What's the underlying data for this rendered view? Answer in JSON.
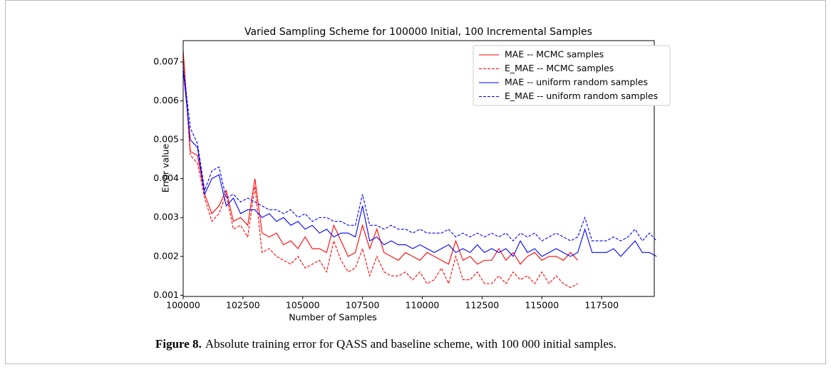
{
  "chart_data": {
    "type": "line",
    "title": "Varied Sampling Scheme for 100000 Initial, 100 Incremental Samples",
    "x_label": "Number of Samples",
    "y_label": "Error value",
    "x": [
      100000,
      100300,
      100600,
      100900,
      101200,
      101500,
      101800,
      102100,
      102400,
      102700,
      103000,
      103300,
      103600,
      103900,
      104200,
      104500,
      104800,
      105100,
      105400,
      105700,
      106000,
      106300,
      106600,
      106900,
      107200,
      107500,
      107800,
      108100,
      108400,
      108700,
      109000,
      109300,
      109600,
      109900,
      110200,
      110500,
      110800,
      111100,
      111400,
      111700,
      112000,
      112300,
      112600,
      112900,
      113200,
      113500,
      113800,
      114100,
      114400,
      114700,
      115000,
      115300,
      115600,
      115900,
      116200,
      116500,
      116800,
      117100,
      117400,
      117700,
      118000,
      118300,
      118600,
      118900,
      119200,
      119500,
      119800
    ],
    "xlim": [
      100000,
      119700
    ],
    "xticks": [
      100000,
      102500,
      105000,
      107500,
      110000,
      112500,
      115000,
      117500
    ],
    "ylim": [
      0.00097,
      0.00755
    ],
    "yticks": [
      0.001,
      0.002,
      0.003,
      0.004,
      0.005,
      0.006,
      0.007
    ],
    "legend": "upper right",
    "series": [
      {
        "name": "MAE -- MCMC samples",
        "color": "#ff0000",
        "dashed": false,
        "values": [
          0.0073,
          0.0047,
          0.0046,
          0.0036,
          0.0031,
          0.0033,
          0.0037,
          0.0029,
          0.003,
          0.0028,
          0.004,
          0.0026,
          0.0025,
          0.0026,
          0.0023,
          0.0024,
          0.0022,
          0.0025,
          0.0022,
          0.0022,
          0.0021,
          0.0028,
          0.0024,
          0.002,
          0.0021,
          0.0028,
          0.0022,
          0.0027,
          0.0021,
          0.002,
          0.0019,
          0.0021,
          0.002,
          0.0019,
          0.0021,
          0.002,
          0.0019,
          0.0018,
          0.0024,
          0.0019,
          0.002,
          0.0018,
          0.0019,
          0.0019,
          0.0022,
          0.0019,
          0.0021,
          0.0018,
          0.002,
          0.0021,
          0.0019,
          0.002,
          0.002,
          0.0019,
          0.0021,
          0.0019,
          null,
          null,
          null,
          null,
          null,
          null,
          null,
          null,
          null,
          null,
          null
        ]
      },
      {
        "name": "E_MAE -- MCMC samples",
        "color": "#ff0000",
        "dashed": true,
        "values": [
          0.0072,
          0.0046,
          0.0044,
          0.0035,
          0.0029,
          0.0031,
          0.0036,
          0.0027,
          0.0028,
          0.0025,
          0.0038,
          0.0021,
          0.0022,
          0.002,
          0.0019,
          0.0018,
          0.002,
          0.0017,
          0.0018,
          0.0019,
          0.0016,
          0.0024,
          0.0019,
          0.0016,
          0.0017,
          0.0022,
          0.0015,
          0.002,
          0.0016,
          0.0015,
          0.0015,
          0.0016,
          0.0014,
          0.0016,
          0.0013,
          0.0014,
          0.0017,
          0.0013,
          0.002,
          0.0014,
          0.0014,
          0.0016,
          0.0013,
          0.0013,
          0.0015,
          0.0013,
          0.0016,
          0.0014,
          0.0015,
          0.0013,
          0.0016,
          0.0013,
          0.0015,
          0.0013,
          0.0012,
          0.0013,
          null,
          null,
          null,
          null,
          null,
          null,
          null,
          null,
          null,
          null,
          null
        ]
      },
      {
        "name": "MAE -- uniform random samples",
        "color": "#0000ff",
        "dashed": false,
        "values": [
          0.0068,
          0.005,
          0.0048,
          0.0036,
          0.004,
          0.0041,
          0.0033,
          0.0035,
          0.0031,
          0.0032,
          0.0032,
          0.003,
          0.0031,
          0.0029,
          0.003,
          0.0028,
          0.0029,
          0.0027,
          0.0028,
          0.0026,
          0.0027,
          0.0025,
          0.0026,
          0.0026,
          0.0025,
          0.0033,
          0.0024,
          0.0025,
          0.0023,
          0.0024,
          0.0023,
          0.0023,
          0.0022,
          0.0023,
          0.0022,
          0.0021,
          0.0022,
          0.0023,
          0.0021,
          0.0022,
          0.0021,
          0.0023,
          0.0021,
          0.0022,
          0.0021,
          0.0022,
          0.002,
          0.0024,
          0.0021,
          0.0022,
          0.002,
          0.0021,
          0.0022,
          0.0021,
          0.002,
          0.0021,
          0.0027,
          0.0021,
          0.0021,
          0.0021,
          0.0022,
          0.002,
          0.0022,
          0.0024,
          0.0021,
          0.0021,
          0.002
        ]
      },
      {
        "name": "E_MAE -- uniform random samples",
        "color": "#0000ff",
        "dashed": true,
        "values": [
          0.0069,
          0.0053,
          0.0049,
          0.0037,
          0.0042,
          0.0043,
          0.0035,
          0.0036,
          0.0034,
          0.0035,
          0.0034,
          0.0033,
          0.0032,
          0.0032,
          0.0031,
          0.0032,
          0.003,
          0.0031,
          0.0029,
          0.003,
          0.003,
          0.0029,
          0.0029,
          0.0028,
          0.0028,
          0.0036,
          0.0028,
          0.0028,
          0.0027,
          0.0028,
          0.0027,
          0.0027,
          0.0026,
          0.0027,
          0.0026,
          0.0026,
          0.0026,
          0.0027,
          0.0025,
          0.0026,
          0.0025,
          0.0026,
          0.0025,
          0.0026,
          0.0025,
          0.0026,
          0.0024,
          0.0026,
          0.0025,
          0.0026,
          0.0024,
          0.0025,
          0.0026,
          0.0025,
          0.0024,
          0.0025,
          0.003,
          0.0024,
          0.0024,
          0.0024,
          0.0025,
          0.0024,
          0.0025,
          0.0027,
          0.0024,
          0.0026,
          0.0024
        ]
      }
    ]
  },
  "caption": {
    "label": "Figure 8.",
    "text": "Absolute training error for QASS and baseline scheme, with 100 000 initial samples."
  }
}
